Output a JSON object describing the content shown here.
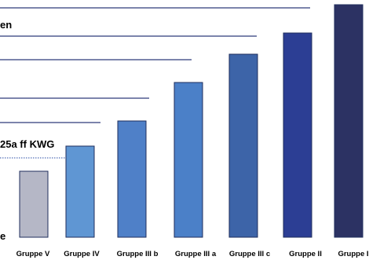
{
  "chart_data": {
    "type": "bar",
    "categories": [
      "Gruppe V",
      "Gruppe IV",
      "Gruppe III b",
      "Gruppe III a",
      "Gruppe III c",
      "Gruppe II",
      "Gruppe I"
    ],
    "values": [
      84,
      116,
      148,
      197,
      233,
      260,
      296
    ],
    "ylim": [
      0,
      300
    ],
    "bar_colors": [
      "#b5b7c6",
      "#5f96d3",
      "#4f80c8",
      "#4b80c8",
      "#3d64a8",
      "#2c3e94",
      "#2c3263"
    ],
    "reference_lines": [
      {
        "level": 292,
        "label": ""
      },
      {
        "level": 256,
        "label": ""
      },
      {
        "level": 226,
        "label": ""
      },
      {
        "level": 177,
        "label": ""
      },
      {
        "level": 146,
        "label": ""
      }
    ],
    "annotations": {
      "top_fragment": "en",
      "kwg_fragment": "25a ff KWG",
      "bottom_fragment": "e"
    },
    "grid": false
  }
}
